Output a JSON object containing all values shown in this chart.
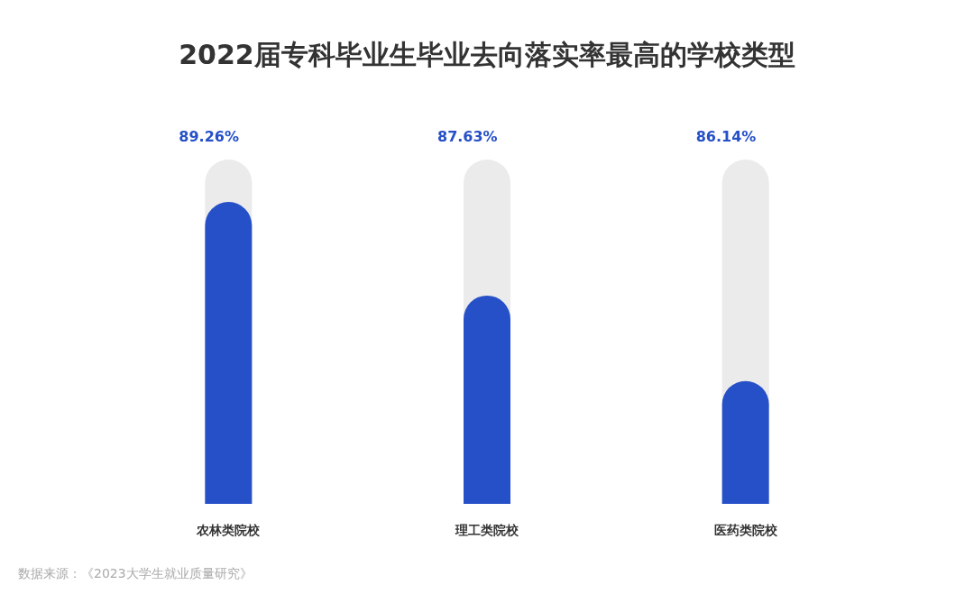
{
  "chart_data": {
    "type": "bar",
    "title": "2022届专科毕业生毕业去向落实率最高的学校类型",
    "categories": [
      "农林类院校",
      "理工类院校",
      "医药类院校"
    ],
    "values": [
      89.26,
      87.63,
      86.14
    ],
    "value_labels": [
      "89.26%",
      "87.63%",
      "86.14%"
    ],
    "color": "#2550c8",
    "ylim": [
      84,
      90
    ],
    "tick_labels": "x",
    "grid": false,
    "annotations": [
      "数据来源：《2023大学生就业质量研究》"
    ]
  }
}
